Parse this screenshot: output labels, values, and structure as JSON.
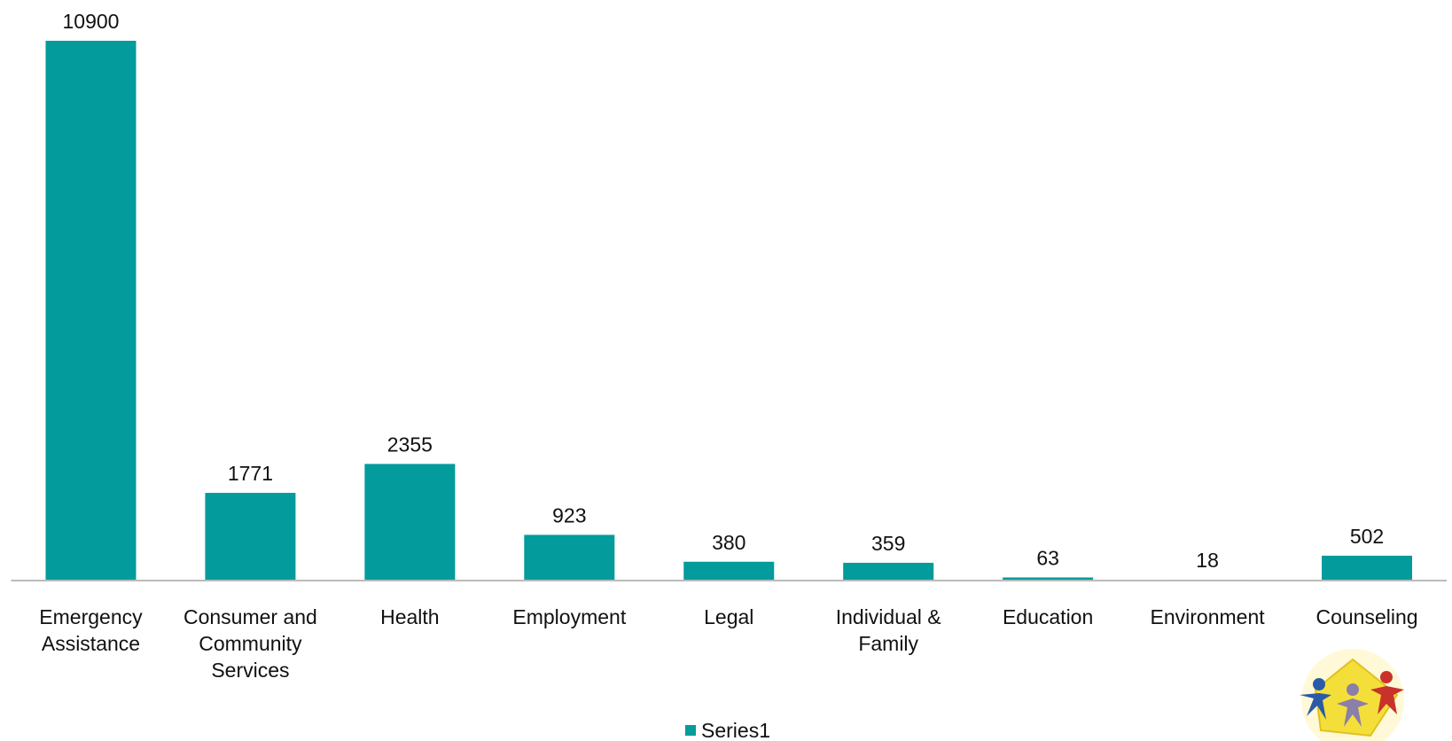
{
  "chart_data": {
    "type": "bar",
    "categories": [
      "Emergency\nAssistance",
      "Consumer and\nCommunity\nServices",
      "Health",
      "Employment",
      "Legal",
      "Individual &\nFamily",
      "Education",
      "Environment",
      "Counseling"
    ],
    "series": [
      {
        "name": "Series1",
        "color": "#039b9b",
        "values": [
          10900,
          1771,
          2355,
          923,
          380,
          359,
          63,
          18,
          502
        ]
      }
    ],
    "legend": "bottom"
  }
}
